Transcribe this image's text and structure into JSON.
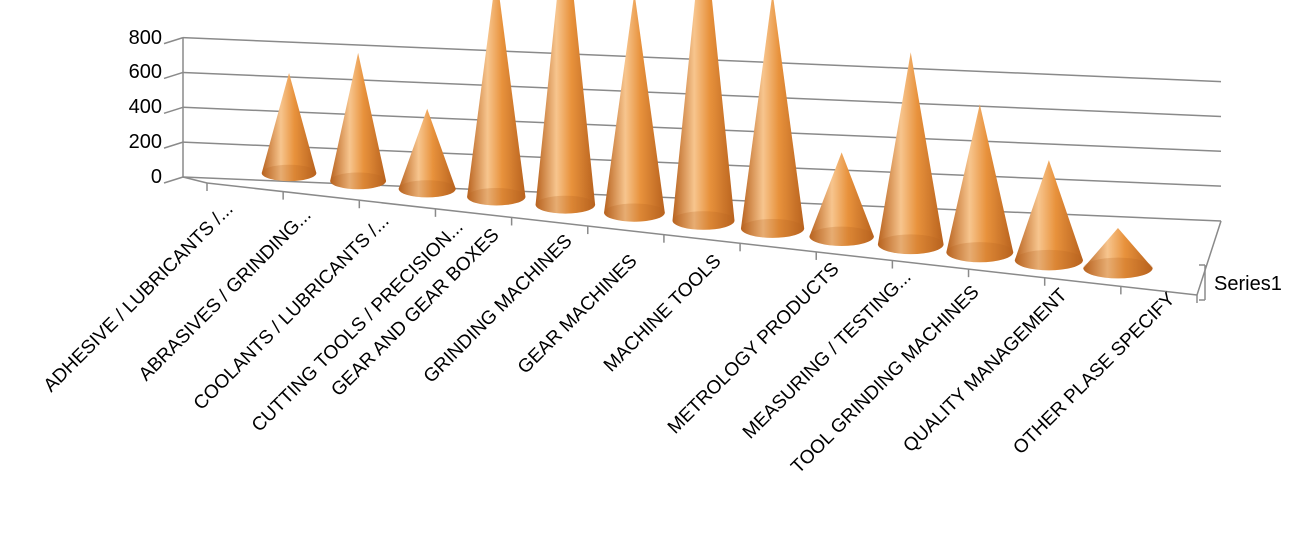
{
  "chart_data": {
    "type": "bar",
    "subtype": "3d-cone",
    "categories": [
      "ADHESIVE / LUBRICANTS /...",
      "ABRASIVES / GRINDING...",
      "COOLANTS / LUBRICANTS /...",
      "CUTTING TOOLS / PRECISION...",
      "GEAR AND GEAR BOXES",
      "GRINDING MACHINES",
      "GEAR MACHINES",
      "MACHINE TOOLS",
      "METROLOGY PRODUCTS",
      "MEASURING / TESTING...",
      "TOOL GRINDING MACHINES",
      "QUALITY MANAGEMENT",
      "OTHER PLASE SPECIFY"
    ],
    "series": [
      {
        "name": "Series1",
        "values": [
          250,
          320,
          200,
          560,
          720,
          550,
          760,
          590,
          210,
          480,
          370,
          250,
          100
        ]
      }
    ],
    "y_ticks": [
      "0",
      "200",
      "400",
      "600",
      "800"
    ],
    "ylim": [
      0,
      800
    ],
    "title": "",
    "xlabel": "",
    "ylabel": "",
    "grid": true,
    "legend_position": "right",
    "colors": {
      "cone_light": "#f7c58e",
      "cone_mid": "#e8923c",
      "cone_dark": "#b8621e",
      "grid": "#8a8a8a"
    }
  }
}
